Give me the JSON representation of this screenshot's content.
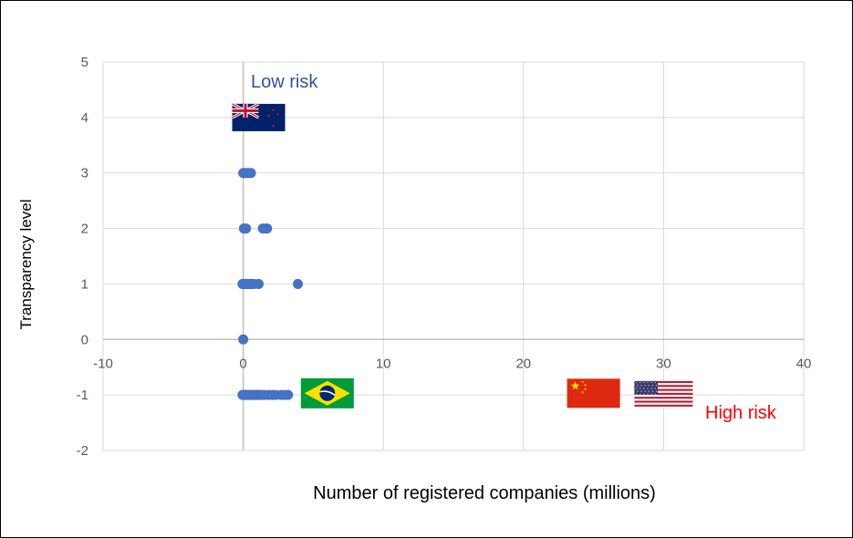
{
  "chart_data": {
    "type": "scatter",
    "xlabel": "Number of registered companies (millions)",
    "ylabel": "Transparency level",
    "xlim": [
      -10,
      40
    ],
    "ylim": [
      -2,
      5
    ],
    "x_ticks": [
      -10,
      0,
      10,
      20,
      30,
      40
    ],
    "y_ticks": [
      -2,
      -1,
      0,
      1,
      2,
      3,
      4,
      5
    ],
    "grid": true,
    "marker_color": "#4472C4",
    "points": [
      {
        "x": 0.0,
        "y": 3
      },
      {
        "x": 0.1,
        "y": 3
      },
      {
        "x": 0.25,
        "y": 3
      },
      {
        "x": 0.4,
        "y": 3
      },
      {
        "x": 0.55,
        "y": 3
      },
      {
        "x": 0.05,
        "y": 2
      },
      {
        "x": 0.2,
        "y": 2
      },
      {
        "x": 1.4,
        "y": 2
      },
      {
        "x": 1.6,
        "y": 2
      },
      {
        "x": 1.7,
        "y": 2
      },
      {
        "x": -0.05,
        "y": 1
      },
      {
        "x": 0.0,
        "y": 1
      },
      {
        "x": 0.05,
        "y": 1
      },
      {
        "x": 0.1,
        "y": 1
      },
      {
        "x": 0.2,
        "y": 1
      },
      {
        "x": 0.3,
        "y": 1
      },
      {
        "x": 0.4,
        "y": 1
      },
      {
        "x": 0.5,
        "y": 1
      },
      {
        "x": 0.6,
        "y": 1
      },
      {
        "x": 0.75,
        "y": 1
      },
      {
        "x": 1.1,
        "y": 1
      },
      {
        "x": 3.9,
        "y": 1
      },
      {
        "x": 0.0,
        "y": 0
      },
      {
        "x": -0.05,
        "y": -1
      },
      {
        "x": 0.0,
        "y": -1
      },
      {
        "x": 0.05,
        "y": -1
      },
      {
        "x": 0.1,
        "y": -1
      },
      {
        "x": 0.15,
        "y": -1
      },
      {
        "x": 0.2,
        "y": -1
      },
      {
        "x": 0.3,
        "y": -1
      },
      {
        "x": 0.4,
        "y": -1
      },
      {
        "x": 0.5,
        "y": -1
      },
      {
        "x": 0.6,
        "y": -1
      },
      {
        "x": 0.7,
        "y": -1
      },
      {
        "x": 0.8,
        "y": -1
      },
      {
        "x": 0.9,
        "y": -1
      },
      {
        "x": 1.0,
        "y": -1
      },
      {
        "x": 1.1,
        "y": -1
      },
      {
        "x": 1.2,
        "y": -1
      },
      {
        "x": 1.3,
        "y": -1
      },
      {
        "x": 1.5,
        "y": -1
      },
      {
        "x": 1.8,
        "y": -1
      },
      {
        "x": 2.1,
        "y": -1
      },
      {
        "x": 2.3,
        "y": -1
      },
      {
        "x": 2.7,
        "y": -1
      },
      {
        "x": 3.0,
        "y": -1
      },
      {
        "x": 3.2,
        "y": -1
      }
    ],
    "annotations": [
      {
        "text": "Low risk",
        "color": "#2F5597"
      },
      {
        "text": "High risk",
        "color": "#FF0000"
      }
    ],
    "flags": [
      {
        "name": "new-zealand-flag",
        "x": 1.1,
        "y": 4.0
      },
      {
        "name": "brazil-flag",
        "x": 6.0,
        "y": -0.97
      },
      {
        "name": "china-flag",
        "x": 25.0,
        "y": -0.97
      },
      {
        "name": "usa-flag",
        "x": 30.0,
        "y": -0.98
      }
    ]
  }
}
